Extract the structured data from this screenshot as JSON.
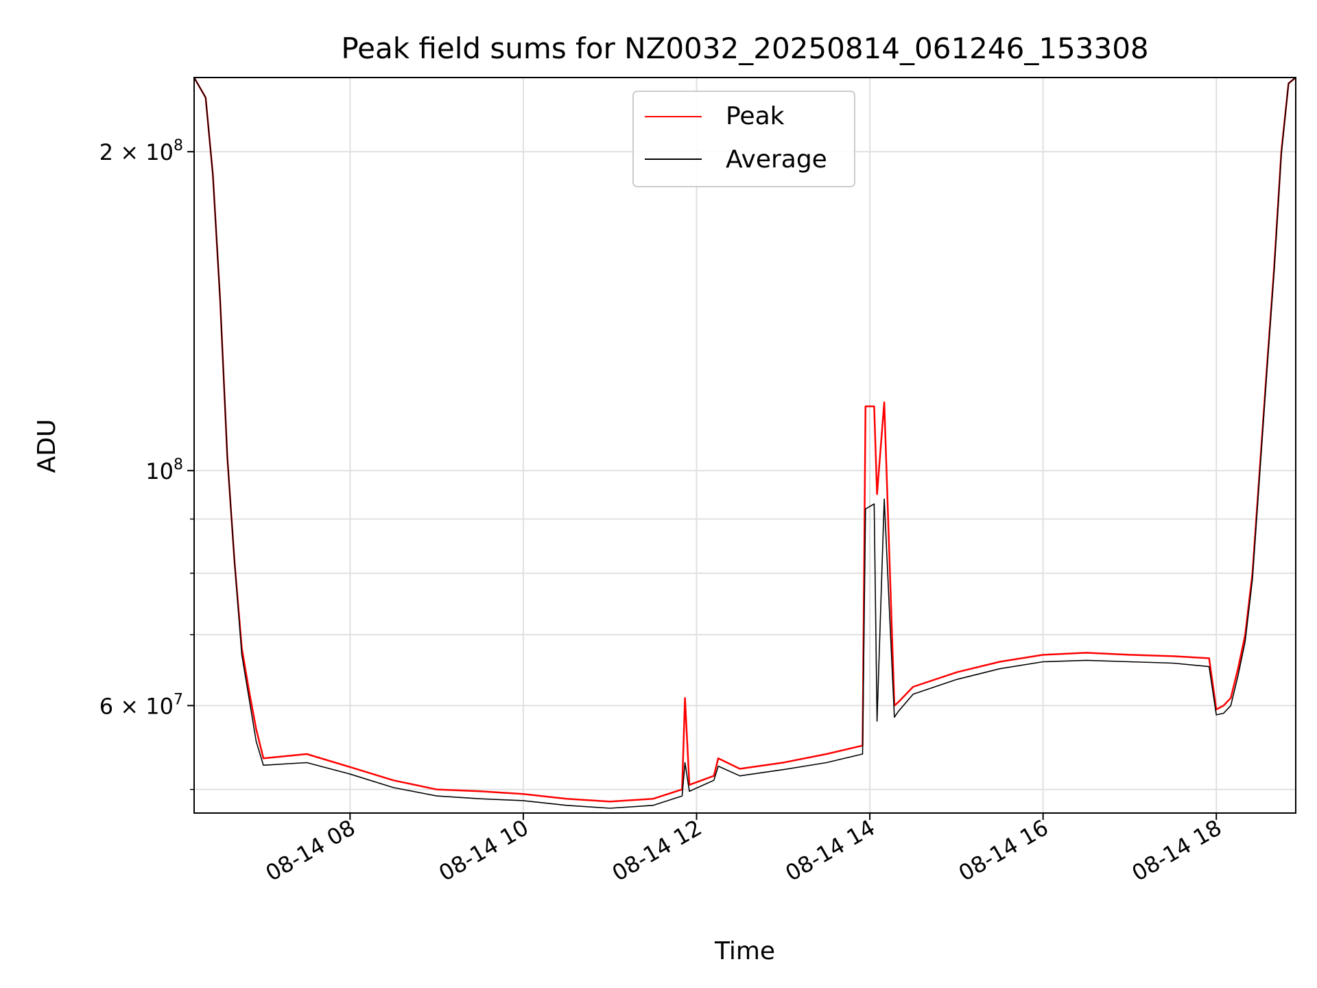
{
  "chart_data": {
    "type": "line",
    "title": "Peak field sums for NZ0032_20250814_061246_153308",
    "xlabel": "Time",
    "ylabel": "ADU",
    "x_start": "08-14 06:12",
    "x_end": "08-14 18:55",
    "xticks": [
      "08-14 08",
      "08-14 10",
      "08-14 12",
      "08-14 14",
      "08-14 16",
      "08-14 18"
    ],
    "y_scale": "log",
    "ylim": [
      47500000,
      235000000
    ],
    "yticks_major": [
      {
        "value": 60000000,
        "label": "6 × 10",
        "exp": "7"
      },
      {
        "value": 100000000,
        "label": "10",
        "exp": "8"
      },
      {
        "value": 200000000,
        "label": "2 × 10",
        "exp": "8"
      }
    ],
    "grid": true,
    "legend_position": "upper-center",
    "series": [
      {
        "name": "Peak",
        "color": "#ff0000",
        "x": [
          "08-14 06:12",
          "08-14 06:20",
          "08-14 06:25",
          "08-14 06:30",
          "08-14 06:35",
          "08-14 06:40",
          "08-14 06:45",
          "08-14 06:50",
          "08-14 06:55",
          "08-14 07:00",
          "08-14 07:30",
          "08-14 08:00",
          "08-14 08:30",
          "08-14 09:00",
          "08-14 09:30",
          "08-14 10:00",
          "08-14 10:30",
          "08-14 11:00",
          "08-14 11:30",
          "08-14 11:50",
          "08-14 11:52",
          "08-14 11:55",
          "08-14 12:12",
          "08-14 12:15",
          "08-14 12:30",
          "08-14 13:00",
          "08-14 13:30",
          "08-14 13:55",
          "08-14 13:57",
          "08-14 14:03",
          "08-14 14:05",
          "08-14 14:10",
          "08-14 14:17",
          "08-14 14:20",
          "08-14 14:30",
          "08-14 15:00",
          "08-14 15:30",
          "08-14 16:00",
          "08-14 16:30",
          "08-14 17:00",
          "08-14 17:30",
          "08-14 17:55",
          "08-14 18:00",
          "08-14 18:05",
          "08-14 18:10",
          "08-14 18:15",
          "08-14 18:20",
          "08-14 18:25",
          "08-14 18:30",
          "08-14 18:35",
          "08-14 18:40",
          "08-14 18:45",
          "08-14 18:50",
          "08-14 18:55"
        ],
        "y": [
          235000000,
          225000000,
          190000000,
          145000000,
          103000000,
          82000000,
          68000000,
          62000000,
          57000000,
          53500000,
          54000000,
          52500000,
          51000000,
          50000000,
          49800000,
          49500000,
          49000000,
          48700000,
          49000000,
          50000000,
          61000000,
          50500000,
          51500000,
          53500000,
          52300000,
          53000000,
          54000000,
          55000000,
          115000000,
          115000000,
          95000000,
          116000000,
          60000000,
          60500000,
          62500000,
          64500000,
          66000000,
          67000000,
          67300000,
          67000000,
          66800000,
          66500000,
          59500000,
          60000000,
          61000000,
          65000000,
          70000000,
          80000000,
          100000000,
          125000000,
          155000000,
          200000000,
          232000000,
          235000000
        ]
      },
      {
        "name": "Average",
        "color": "#000000",
        "x": [
          "08-14 06:12",
          "08-14 06:20",
          "08-14 06:25",
          "08-14 06:30",
          "08-14 06:35",
          "08-14 06:40",
          "08-14 06:45",
          "08-14 06:50",
          "08-14 06:55",
          "08-14 07:00",
          "08-14 07:30",
          "08-14 08:00",
          "08-14 08:30",
          "08-14 09:00",
          "08-14 09:30",
          "08-14 10:00",
          "08-14 10:30",
          "08-14 11:00",
          "08-14 11:30",
          "08-14 11:50",
          "08-14 11:52",
          "08-14 11:55",
          "08-14 12:12",
          "08-14 12:15",
          "08-14 12:30",
          "08-14 13:00",
          "08-14 13:30",
          "08-14 13:55",
          "08-14 13:57",
          "08-14 14:03",
          "08-14 14:05",
          "08-14 14:10",
          "08-14 14:17",
          "08-14 14:20",
          "08-14 14:30",
          "08-14 15:00",
          "08-14 15:30",
          "08-14 16:00",
          "08-14 16:30",
          "08-14 17:00",
          "08-14 17:30",
          "08-14 17:55",
          "08-14 18:00",
          "08-14 18:05",
          "08-14 18:10",
          "08-14 18:15",
          "08-14 18:20",
          "08-14 18:25",
          "08-14 18:30",
          "08-14 18:35",
          "08-14 18:40",
          "08-14 18:45",
          "08-14 18:50",
          "08-14 18:55"
        ],
        "y": [
          235000000,
          225000000,
          190000000,
          145000000,
          103000000,
          82000000,
          67000000,
          61000000,
          55500000,
          52700000,
          53000000,
          51700000,
          50200000,
          49300000,
          49000000,
          48800000,
          48300000,
          48000000,
          48300000,
          49300000,
          53000000,
          49800000,
          51000000,
          52600000,
          51500000,
          52200000,
          53000000,
          54000000,
          92000000,
          93000000,
          58000000,
          94000000,
          58500000,
          59300000,
          61500000,
          63500000,
          65000000,
          66000000,
          66200000,
          66000000,
          65800000,
          65300000,
          58800000,
          59000000,
          60000000,
          64000000,
          69000000,
          79000000,
          99000000,
          124000000,
          154000000,
          199000000,
          232000000,
          235000000
        ]
      }
    ]
  }
}
